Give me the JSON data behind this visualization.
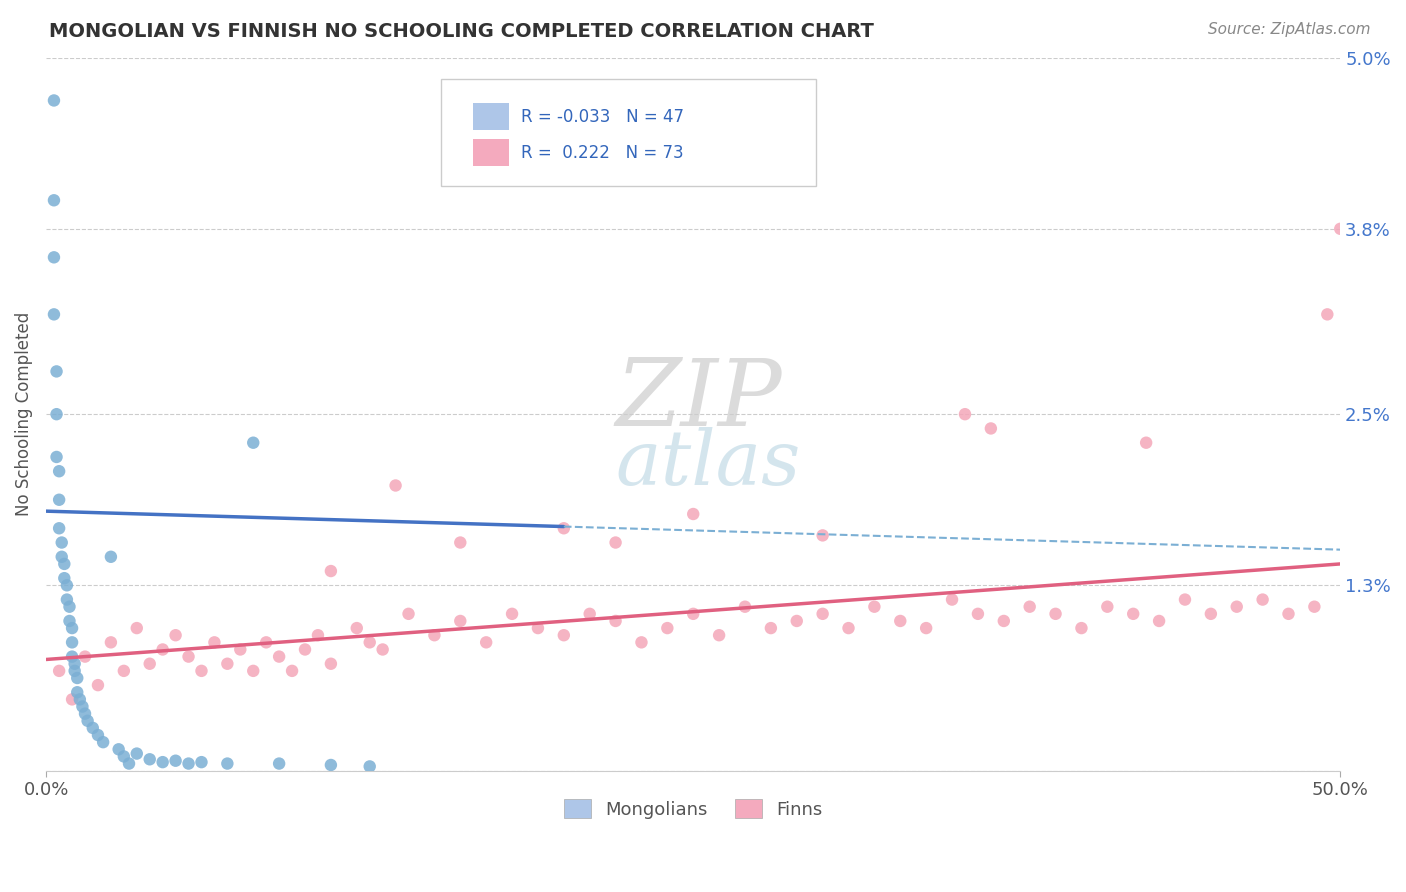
{
  "title": "MONGOLIAN VS FINNISH NO SCHOOLING COMPLETED CORRELATION CHART",
  "source": "Source: ZipAtlas.com",
  "ylabel": "No Schooling Completed",
  "xmin": 0.0,
  "xmax": 50.0,
  "ymin": 0.0,
  "ymax": 5.0,
  "mongolian_R": -0.033,
  "mongolian_N": 47,
  "finn_R": 0.222,
  "finn_N": 73,
  "mongolian_dot_color": "#7BAFD4",
  "finn_dot_color": "#F4A7B9",
  "trend_mongolian_color": "#4472C4",
  "trend_finn_color": "#E06080",
  "dashed_line_color": "#7BAFD4",
  "legend_box_mongolian": "#AEC6E8",
  "legend_box_finn": "#F4AABE",
  "ytick_vals": [
    0.0,
    1.3,
    2.5,
    3.8,
    5.0
  ],
  "ytick_labels": [
    "",
    "1.3%",
    "2.5%",
    "3.8%",
    "5.0%"
  ],
  "mong_x": [
    0.3,
    0.3,
    0.3,
    0.3,
    0.4,
    0.4,
    0.4,
    0.5,
    0.5,
    0.5,
    0.6,
    0.6,
    0.7,
    0.7,
    0.8,
    0.8,
    0.9,
    0.9,
    1.0,
    1.0,
    1.0,
    1.1,
    1.1,
    1.2,
    1.2,
    1.3,
    1.4,
    1.5,
    1.6,
    1.8,
    2.0,
    2.2,
    2.5,
    2.8,
    3.0,
    3.2,
    3.5,
    4.0,
    4.5,
    5.0,
    5.5,
    6.0,
    7.0,
    8.0,
    9.0,
    11.0,
    12.5
  ],
  "mong_y": [
    4.7,
    4.0,
    3.6,
    3.2,
    2.8,
    2.5,
    2.2,
    2.1,
    1.9,
    1.7,
    1.6,
    1.5,
    1.45,
    1.35,
    1.3,
    1.2,
    1.15,
    1.05,
    1.0,
    0.9,
    0.8,
    0.75,
    0.7,
    0.65,
    0.55,
    0.5,
    0.45,
    0.4,
    0.35,
    0.3,
    0.25,
    0.2,
    1.5,
    0.15,
    0.1,
    0.05,
    0.12,
    0.08,
    0.06,
    0.07,
    0.05,
    0.06,
    0.05,
    2.3,
    0.05,
    0.04,
    0.03
  ],
  "finn_x": [
    0.5,
    1.0,
    1.5,
    2.0,
    2.5,
    3.0,
    3.5,
    4.0,
    4.5,
    5.0,
    5.5,
    6.0,
    6.5,
    7.0,
    7.5,
    8.0,
    8.5,
    9.0,
    9.5,
    10.0,
    10.5,
    11.0,
    12.0,
    12.5,
    13.0,
    14.0,
    15.0,
    16.0,
    17.0,
    18.0,
    19.0,
    20.0,
    21.0,
    22.0,
    23.0,
    24.0,
    25.0,
    26.0,
    27.0,
    28.0,
    29.0,
    30.0,
    31.0,
    32.0,
    33.0,
    34.0,
    35.0,
    36.0,
    37.0,
    38.0,
    39.0,
    40.0,
    41.0,
    42.0,
    43.0,
    44.0,
    45.0,
    46.0,
    47.0,
    48.0,
    49.0,
    49.5,
    30.0,
    35.5,
    22.0,
    13.5,
    20.0,
    16.0,
    42.5,
    25.0,
    11.0,
    36.5,
    50.0
  ],
  "finn_y": [
    0.7,
    0.5,
    0.8,
    0.6,
    0.9,
    0.7,
    1.0,
    0.75,
    0.85,
    0.95,
    0.8,
    0.7,
    0.9,
    0.75,
    0.85,
    0.7,
    0.9,
    0.8,
    0.7,
    0.85,
    0.95,
    0.75,
    1.0,
    0.9,
    0.85,
    1.1,
    0.95,
    1.05,
    0.9,
    1.1,
    1.0,
    0.95,
    1.1,
    1.05,
    0.9,
    1.0,
    1.1,
    0.95,
    1.15,
    1.0,
    1.05,
    1.1,
    1.0,
    1.15,
    1.05,
    1.0,
    1.2,
    1.1,
    1.05,
    1.15,
    1.1,
    1.0,
    1.15,
    1.1,
    1.05,
    1.2,
    1.1,
    1.15,
    1.2,
    1.1,
    1.15,
    3.2,
    1.65,
    2.5,
    1.6,
    2.0,
    1.7,
    1.6,
    2.3,
    1.8,
    1.4,
    2.4,
    3.8
  ],
  "mong_trend_x0": 0.0,
  "mong_trend_x1": 50.0,
  "mong_trend_y0": 1.82,
  "mong_trend_y1": 1.55,
  "mong_solid_end_x": 20.0,
  "finn_trend_x0": 0.0,
  "finn_trend_x1": 50.0,
  "finn_trend_y0": 0.78,
  "finn_trend_y1": 1.45
}
